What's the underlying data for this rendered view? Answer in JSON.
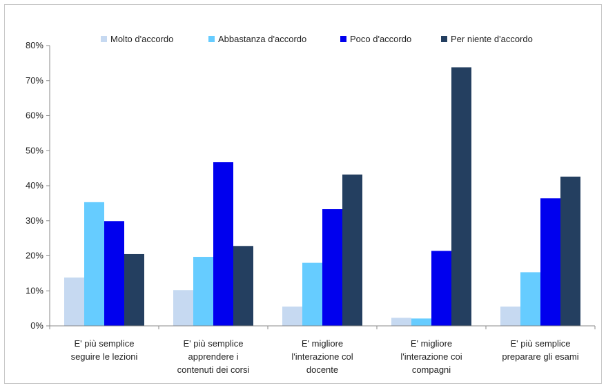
{
  "chart_data": {
    "type": "bar",
    "categories": [
      [
        "E' più semplice",
        "seguire le lezioni"
      ],
      [
        "E' più semplice",
        "apprendere i",
        "contenuti dei corsi"
      ],
      [
        "E' migliore",
        "l'interazione col",
        "docente"
      ],
      [
        "E' migliore",
        "l'interazione coi",
        "compagni"
      ],
      [
        "E' più semplice",
        "preparare gli esami"
      ]
    ],
    "series": [
      {
        "name": "Molto d'accordo",
        "color": "#c6d9f1",
        "values": [
          13.8,
          10.2,
          5.5,
          2.3,
          5.5
        ]
      },
      {
        "name": "Abbastanza d'accordo",
        "color": "#66ccff",
        "values": [
          35.3,
          19.7,
          18.0,
          2.1,
          15.3
        ]
      },
      {
        "name": "Poco d'accordo",
        "color": "#0000ee",
        "values": [
          29.9,
          46.7,
          33.3,
          21.4,
          36.4
        ]
      },
      {
        "name": "Per niente d'accordo",
        "color": "#243f60",
        "values": [
          20.5,
          22.8,
          43.2,
          73.8,
          42.6
        ]
      }
    ],
    "yticks": [
      "0%",
      "10%",
      "20%",
      "30%",
      "40%",
      "50%",
      "60%",
      "70%",
      "80%"
    ],
    "ylim": [
      0,
      80
    ],
    "title": "",
    "xlabel": "",
    "ylabel": "",
    "grid": false,
    "legend_position": "top"
  }
}
